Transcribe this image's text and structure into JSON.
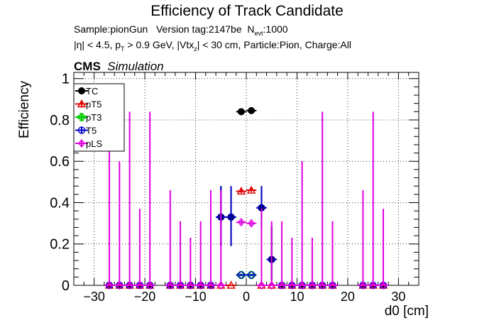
{
  "title": "Efficiency of Track Candidate",
  "meta": {
    "line1_sample": "Sample:pionGun",
    "line1_version": "Version tag:2147be",
    "line1_nevt_label": "N",
    "line1_nevt_sub": "evt",
    "line1_nevt_value": ":1000",
    "line2_a": "|η| < 4.5, p",
    "line2_sub_t": "T",
    "line2_b": " > 0.9 GeV, |Vtx",
    "line2_sub_z": "z",
    "line2_c": "| < 30 cm, Particle:Pion, Charge:All"
  },
  "cms_label": "CMS",
  "sim_label": "Simulation",
  "colors": {
    "TC": "#000000",
    "pT5": "#e00000",
    "pT3": "#00cc00",
    "T5": "#0000cc",
    "pLS": "#e000e0"
  },
  "chart_data": {
    "type": "scatter",
    "title": "Efficiency of Track Candidate",
    "xlabel": "d0 [cm]",
    "ylabel": "Efficiency",
    "xlim": [
      -34,
      34
    ],
    "ylim": [
      0,
      1.03
    ],
    "xticks": [
      -30,
      -20,
      -10,
      0,
      10,
      20,
      30
    ],
    "yticks": [
      0,
      0.2,
      0.4,
      0.6,
      0.8,
      1
    ],
    "xtick_labels": [
      "−30",
      "−20",
      "−10",
      "0",
      "10",
      "20",
      "30"
    ],
    "ytick_labels": [
      "0",
      "0.2",
      "0.4",
      "0.6",
      "0.8",
      "1"
    ],
    "grid": true,
    "legend_position": "top-left",
    "xerr": 1,
    "series": [
      {
        "name": "TC",
        "marker": "circle-filled",
        "color": "#000000",
        "points": [
          {
            "x": -27,
            "y": 0
          },
          {
            "x": -25,
            "y": 0
          },
          {
            "x": -23,
            "y": 0
          },
          {
            "x": -21,
            "y": 0
          },
          {
            "x": -19,
            "y": 0
          },
          {
            "x": -15,
            "y": 0
          },
          {
            "x": -13,
            "y": 0
          },
          {
            "x": -11,
            "y": 0
          },
          {
            "x": -9,
            "y": 0
          },
          {
            "x": -7,
            "y": 0
          },
          {
            "x": -5,
            "y": 0.33,
            "elo": 0.14,
            "ehi": 0.15
          },
          {
            "x": -3,
            "y": 0.33,
            "elo": 0.14,
            "ehi": 0.15
          },
          {
            "x": -1,
            "y": 0.84,
            "elo": 0.01,
            "ehi": 0.01
          },
          {
            "x": 1,
            "y": 0.845,
            "elo": 0.01,
            "ehi": 0.01
          },
          {
            "x": 3,
            "y": 0.375,
            "elo": 0.1,
            "ehi": 0.105
          },
          {
            "x": 5,
            "y": 0.125,
            "elo": 0.1,
            "ehi": 0.16
          },
          {
            "x": 7,
            "y": 0
          },
          {
            "x": 9,
            "y": 0
          },
          {
            "x": 11,
            "y": 0
          },
          {
            "x": 13,
            "y": 0
          },
          {
            "x": 15,
            "y": 0
          },
          {
            "x": 17,
            "y": 0
          },
          {
            "x": 23,
            "y": 0
          },
          {
            "x": 25,
            "y": 0
          },
          {
            "x": 27,
            "y": 0
          }
        ]
      },
      {
        "name": "pT5",
        "marker": "triangle-open",
        "color": "#e00000",
        "points": [
          {
            "x": -27,
            "y": 0
          },
          {
            "x": -25,
            "y": 0
          },
          {
            "x": -23,
            "y": 0
          },
          {
            "x": -21,
            "y": 0
          },
          {
            "x": -19,
            "y": 0
          },
          {
            "x": -15,
            "y": 0
          },
          {
            "x": -13,
            "y": 0
          },
          {
            "x": -11,
            "y": 0
          },
          {
            "x": -9,
            "y": 0
          },
          {
            "x": -7,
            "y": 0
          },
          {
            "x": -5,
            "y": 0
          },
          {
            "x": -3,
            "y": 0
          },
          {
            "x": -1,
            "y": 0.455,
            "elo": 0.01,
            "ehi": 0.01
          },
          {
            "x": 1,
            "y": 0.46,
            "elo": 0.01,
            "ehi": 0.01
          },
          {
            "x": 3,
            "y": 0
          },
          {
            "x": 5,
            "y": 0
          },
          {
            "x": 7,
            "y": 0
          },
          {
            "x": 9,
            "y": 0
          },
          {
            "x": 11,
            "y": 0
          },
          {
            "x": 13,
            "y": 0
          },
          {
            "x": 15,
            "y": 0
          },
          {
            "x": 17,
            "y": 0
          },
          {
            "x": 23,
            "y": 0
          },
          {
            "x": 25,
            "y": 0
          },
          {
            "x": 27,
            "y": 0
          }
        ]
      },
      {
        "name": "pT3",
        "marker": "cross-open",
        "color": "#00cc00",
        "points": [
          {
            "x": -1,
            "y": 0.05,
            "elo": 0.005,
            "ehi": 0.005
          },
          {
            "x": 1,
            "y": 0.05,
            "elo": 0.005,
            "ehi": 0.005
          }
        ]
      },
      {
        "name": "T5",
        "marker": "circle-open",
        "color": "#0000cc",
        "points": [
          {
            "x": -27,
            "y": 0
          },
          {
            "x": -25,
            "y": 0
          },
          {
            "x": -23,
            "y": 0
          },
          {
            "x": -21,
            "y": 0
          },
          {
            "x": -19,
            "y": 0
          },
          {
            "x": -15,
            "y": 0
          },
          {
            "x": -13,
            "y": 0
          },
          {
            "x": -11,
            "y": 0
          },
          {
            "x": -9,
            "y": 0
          },
          {
            "x": -7,
            "y": 0
          },
          {
            "x": -5,
            "y": 0.33,
            "elo": 0.14,
            "ehi": 0.15
          },
          {
            "x": -3,
            "y": 0.33,
            "elo": 0.14,
            "ehi": 0.15
          },
          {
            "x": -1,
            "y": 0.05,
            "elo": 0.005,
            "ehi": 0.005
          },
          {
            "x": 1,
            "y": 0.05,
            "elo": 0.005,
            "ehi": 0.005
          },
          {
            "x": 3,
            "y": 0.375,
            "elo": 0.1,
            "ehi": 0.105
          },
          {
            "x": 5,
            "y": 0.125,
            "elo": 0.1,
            "ehi": 0.16
          },
          {
            "x": 7,
            "y": 0
          },
          {
            "x": 9,
            "y": 0
          },
          {
            "x": 11,
            "y": 0
          },
          {
            "x": 13,
            "y": 0
          },
          {
            "x": 15,
            "y": 0
          },
          {
            "x": 17,
            "y": 0
          },
          {
            "x": 23,
            "y": 0
          },
          {
            "x": 25,
            "y": 0
          },
          {
            "x": 27,
            "y": 0
          }
        ]
      },
      {
        "name": "pLS",
        "marker": "diamond-open",
        "color": "#e000e0",
        "points": [
          {
            "x": -27,
            "y": 0,
            "elo": 0,
            "ehi": 0.84
          },
          {
            "x": -25,
            "y": 0,
            "elo": 0,
            "ehi": 0.6
          },
          {
            "x": -23,
            "y": 0,
            "elo": 0,
            "ehi": 0.84
          },
          {
            "x": -21,
            "y": 0,
            "elo": 0,
            "ehi": 0.37
          },
          {
            "x": -19,
            "y": 0,
            "elo": 0,
            "ehi": 0.84
          },
          {
            "x": -15,
            "y": 0,
            "elo": 0,
            "ehi": 0.46
          },
          {
            "x": -13,
            "y": 0,
            "elo": 0,
            "ehi": 0.31
          },
          {
            "x": -11,
            "y": 0,
            "elo": 0,
            "ehi": 0.23
          },
          {
            "x": -9,
            "y": 0,
            "elo": 0,
            "ehi": 0.31
          },
          {
            "x": -7,
            "y": 0,
            "elo": 0,
            "ehi": 0.46
          },
          {
            "x": -5,
            "y": 0,
            "elo": 0,
            "ehi": 0.46
          },
          {
            "x": -1,
            "y": 0.305,
            "elo": 0.01,
            "ehi": 0.01
          },
          {
            "x": 1,
            "y": 0.3,
            "elo": 0.01,
            "ehi": 0.01
          },
          {
            "x": 3,
            "y": 0,
            "elo": 0,
            "ehi": 0.37
          },
          {
            "x": 5,
            "y": 0,
            "elo": 0,
            "ehi": 0.31
          },
          {
            "x": 7,
            "y": 0,
            "elo": 0,
            "ehi": 0.31
          },
          {
            "x": 9,
            "y": 0,
            "elo": 0,
            "ehi": 0.23
          },
          {
            "x": 11,
            "y": 0,
            "elo": 0,
            "ehi": 0.6
          },
          {
            "x": 13,
            "y": 0,
            "elo": 0,
            "ehi": 0.23
          },
          {
            "x": 15,
            "y": 0,
            "elo": 0,
            "ehi": 0.84
          },
          {
            "x": 17,
            "y": 0,
            "elo": 0,
            "ehi": 0.31
          },
          {
            "x": 23,
            "y": 0,
            "elo": 0,
            "ehi": 0.46
          },
          {
            "x": 25,
            "y": 0,
            "elo": 0,
            "ehi": 0.84
          },
          {
            "x": 27,
            "y": 0,
            "elo": 0,
            "ehi": 0.37
          }
        ]
      }
    ]
  }
}
